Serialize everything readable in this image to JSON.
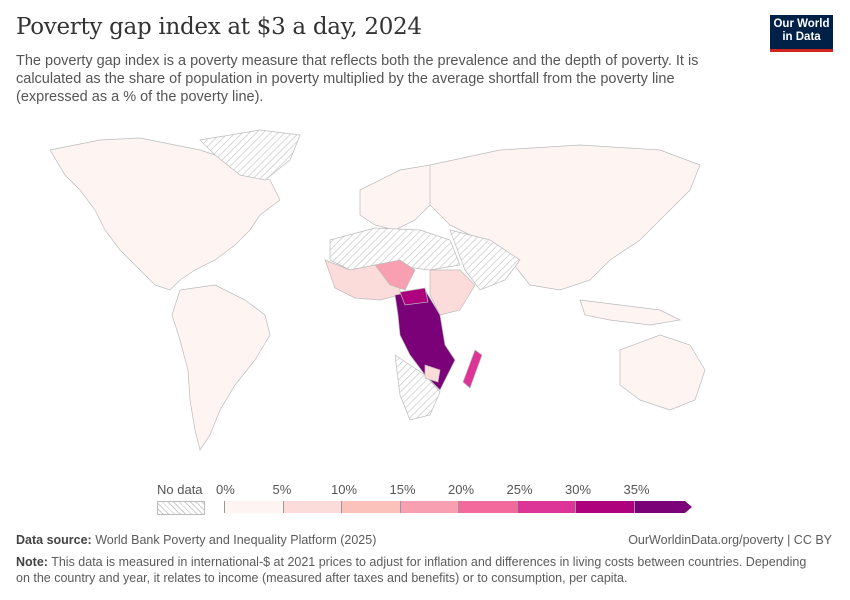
{
  "header": {
    "title": "Poverty gap index at $3 a day, 2024",
    "subtitle": "The poverty gap index is a poverty measure that reflects both the prevalence and the depth of poverty. It is calculated as the share of population in poverty multiplied by the average shortfall from the poverty line (expressed as a % of the poverty line).",
    "logo": "Our World in Data"
  },
  "legend": {
    "no_data": "No data",
    "ticks": [
      "0%",
      "5%",
      "10%",
      "15%",
      "20%",
      "25%",
      "30%",
      "35%"
    ],
    "colors": [
      "#fef5f3",
      "#fcdcdb",
      "#fbc2bc",
      "#f8a0b2",
      "#f4699b",
      "#dc3497",
      "#ae017e",
      "#7a0177"
    ]
  },
  "footer": {
    "source_label": "Data source:",
    "source": "World Bank Poverty and Inequality Platform (2025)",
    "link": "OurWorldinData.org/poverty | CC BY",
    "note_label": "Note:",
    "note": "This data is measured in international-$ at 2021 prices to adjust for inflation and differences in living costs between countries. Depending on the country and year, it relates to income (measured after taxes and benefits) or to consumption, per capita."
  }
}
